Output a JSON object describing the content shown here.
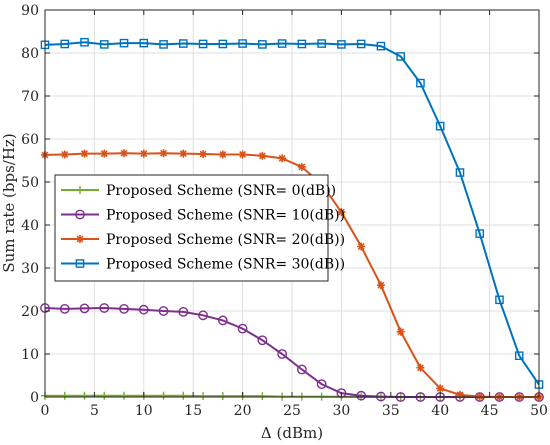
{
  "chart_data": {
    "type": "line",
    "xlabel": "Δ (dBm)",
    "ylabel": "Sum rate (bps/Hz)",
    "xlim": [
      0,
      50
    ],
    "ylim": [
      0,
      90
    ],
    "xticks": [
      0,
      5,
      10,
      15,
      20,
      25,
      30,
      35,
      40,
      45,
      50
    ],
    "yticks": [
      0,
      10,
      20,
      30,
      40,
      50,
      60,
      70,
      80,
      90
    ],
    "grid": true,
    "legend_position": "center-left",
    "x": [
      0,
      2,
      4,
      6,
      8,
      10,
      12,
      14,
      16,
      18,
      20,
      22,
      24,
      26,
      28,
      30,
      32,
      34,
      36,
      38,
      40,
      42,
      44,
      46,
      48,
      50
    ],
    "series": [
      {
        "name": "Proposed Scheme (SNR= 0(dB))",
        "color": "#77ac30",
        "marker": "plus",
        "values": [
          0.3,
          0.3,
          0.3,
          0.3,
          0.3,
          0.3,
          0.3,
          0.3,
          0.2,
          0.2,
          0.2,
          0.2,
          0.1,
          0.1,
          0.1,
          0.05,
          0.05,
          0,
          0,
          0,
          0,
          0,
          0,
          0,
          0,
          0
        ]
      },
      {
        "name": "Proposed Scheme (SNR= 10(dB))",
        "color": "#7e2f8e",
        "marker": "circle",
        "values": [
          20.7,
          20.5,
          20.6,
          20.7,
          20.5,
          20.3,
          20.0,
          19.8,
          19.0,
          17.8,
          15.9,
          13.2,
          10.0,
          6.4,
          3.0,
          0.9,
          0.3,
          0.1,
          0,
          0,
          0,
          0,
          0,
          0,
          0,
          0
        ]
      },
      {
        "name": "Proposed Scheme (SNR= 20(dB))",
        "color": "#d95319",
        "marker": "star",
        "values": [
          56.3,
          56.4,
          56.6,
          56.6,
          56.7,
          56.6,
          56.7,
          56.6,
          56.5,
          56.4,
          56.4,
          56.1,
          55.5,
          53.5,
          49.5,
          43.0,
          35.0,
          26.0,
          15.2,
          6.8,
          2.0,
          0.5,
          0.1,
          0,
          0,
          0
        ]
      },
      {
        "name": "Proposed Scheme (SNR= 30(dB))",
        "color": "#0072bd",
        "marker": "square",
        "values": [
          81.9,
          82.1,
          82.5,
          82.0,
          82.3,
          82.3,
          82.0,
          82.2,
          82.1,
          82.1,
          82.2,
          82.0,
          82.2,
          82.1,
          82.2,
          82.0,
          82.1,
          81.6,
          79.2,
          73.0,
          63.0,
          52.2,
          38.0,
          22.6,
          9.6,
          2.9
        ]
      }
    ]
  }
}
